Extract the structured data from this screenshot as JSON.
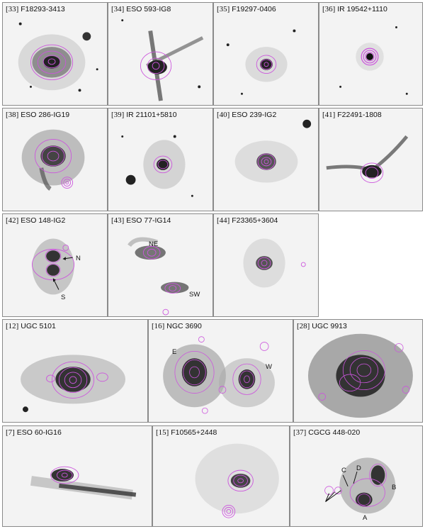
{
  "colors": {
    "contour": "#cc55dd",
    "ink": "#111111",
    "panel_bg": "#f3f3f3"
  },
  "panels": [
    {
      "num": "[33]",
      "name": "F18293-3413"
    },
    {
      "num": "[34]",
      "name": "ESO 593-IG8"
    },
    {
      "num": "[35]",
      "name": "F19297-0406"
    },
    {
      "num": "[36]",
      "name": "IR 19542+1110"
    },
    {
      "num": "[38]",
      "name": "ESO 286-IG19"
    },
    {
      "num": "[39]",
      "name": "IR 21101+5810"
    },
    {
      "num": "[40]",
      "name": "ESO 239-IG2"
    },
    {
      "num": "[41]",
      "name": "F22491-1808"
    },
    {
      "num": "[42]",
      "name": "ESO 148-IG2"
    },
    {
      "num": "[43]",
      "name": "ESO 77-IG14"
    },
    {
      "num": "[44]",
      "name": "F23365+3604"
    },
    {
      "num": "[12]",
      "name": "UGC 5101"
    },
    {
      "num": "[16]",
      "name": "NGC 3690"
    },
    {
      "num": "[28]",
      "name": "UGC 9913"
    },
    {
      "num": "[7]",
      "name": "ESO 60-IG16"
    },
    {
      "num": "[15]",
      "name": "F10565+2448"
    },
    {
      "num": "[37]",
      "name": "CGCG 448-020"
    }
  ],
  "annotations": {
    "eso148_n": "N",
    "eso148_s": "S",
    "eso77_ne": "NE",
    "eso77_sw": "SW",
    "ngc3690_e": "E",
    "ngc3690_w": "W",
    "cgcg_a": "A",
    "cgcg_b": "B",
    "cgcg_c": "C",
    "cgcg_d": "D"
  }
}
